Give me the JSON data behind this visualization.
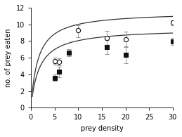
{
  "open_x": [
    5,
    6,
    10,
    16,
    20,
    30
  ],
  "open_y": [
    5.6,
    5.5,
    9.3,
    8.4,
    8.2,
    10.2
  ],
  "open_yerr_lo": [
    0.45,
    0.4,
    0.8,
    0.85,
    0.9,
    0.3
  ],
  "open_yerr_hi": [
    0.45,
    0.4,
    0.6,
    0.85,
    0.9,
    0.3
  ],
  "filled_x": [
    5,
    6,
    8,
    16,
    20,
    30
  ],
  "filled_y": [
    3.6,
    4.3,
    6.6,
    7.3,
    6.35,
    7.95
  ],
  "filled_yerr_lo": [
    0.4,
    0.65,
    0.45,
    0.85,
    1.0,
    0.45
  ],
  "filled_yerr_hi": [
    0.4,
    0.65,
    0.45,
    0.85,
    1.0,
    0.45
  ],
  "open_curve_a": 11.5,
  "open_curve_b": 1.5,
  "filled_curve_a": 9.5,
  "filled_curve_b": 1.8,
  "xlim": [
    0,
    30
  ],
  "ylim": [
    0,
    12
  ],
  "xticks": [
    0,
    5,
    10,
    15,
    20,
    25,
    30
  ],
  "yticks": [
    0,
    2,
    4,
    6,
    8,
    10,
    12
  ],
  "xlabel": "prey density",
  "ylabel": "no. of prey eaten",
  "line_color": "#333333",
  "open_marker_facecolor": "white",
  "marker_edgecolor": "#111111",
  "filled_marker_facecolor": "#111111",
  "marker_size": 4.5,
  "error_color": "#999999",
  "font_size": 7,
  "curve_start": 0.3
}
